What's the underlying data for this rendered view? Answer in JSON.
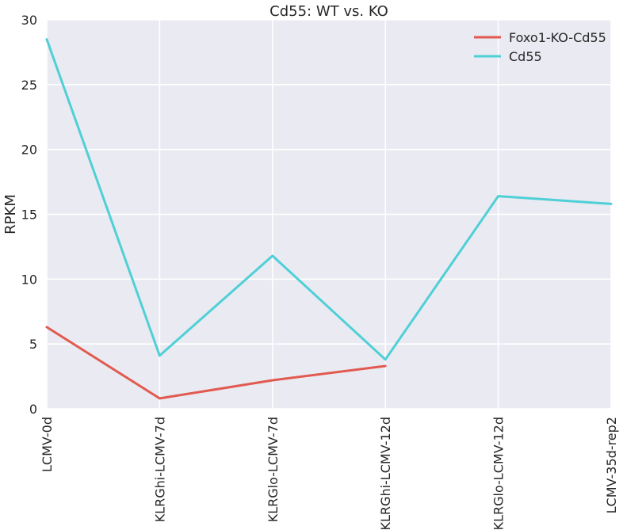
{
  "chart_data": {
    "type": "line",
    "title": "Cd55: WT vs. KO",
    "xlabel": "",
    "ylabel": "RPKM",
    "categories": [
      "LCMV-0d",
      "KLRGhi-LCMV-7d",
      "KLRGlo-LCMV-7d",
      "KLRGhi-LCMV-12d",
      "KLRGlo-LCMV-12d",
      "LCMV-35d-rep2"
    ],
    "ylim": [
      0,
      30
    ],
    "yticks": [
      0,
      5,
      10,
      15,
      20,
      25,
      30
    ],
    "grid": true,
    "legend_position": "top-right",
    "series": [
      {
        "name": "Foxo1-KO-Cd55",
        "color": "#e15a50",
        "values": [
          6.3,
          0.8,
          2.2,
          3.3,
          null,
          null
        ]
      },
      {
        "name": "Cd55",
        "color": "#4fd0d6",
        "values": [
          28.5,
          4.1,
          11.8,
          3.8,
          16.4,
          15.8
        ]
      }
    ]
  },
  "colors": {
    "plot_background": "#eaeaf2",
    "grid": "#ffffff"
  }
}
